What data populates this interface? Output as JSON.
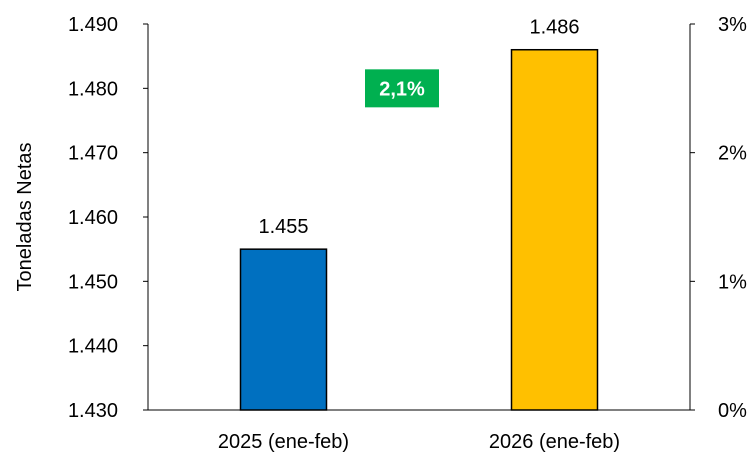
{
  "chart_data": {
    "type": "bar",
    "categories": [
      "2025 (ene-feb)",
      "2026 (ene-feb)"
    ],
    "values": [
      1455,
      1486
    ],
    "value_labels": [
      "1.455",
      "1.486"
    ],
    "bar_colors": [
      "#0070C0",
      "#FFC000"
    ],
    "ylabel": "Toneladas Netas",
    "ylim": [
      1430,
      1490
    ],
    "y_ticks": [
      1430,
      1440,
      1450,
      1460,
      1470,
      1480,
      1490
    ],
    "y_tick_labels": [
      "1.430",
      "1.440",
      "1.450",
      "1.460",
      "1.470",
      "1.480",
      "1.490"
    ],
    "y2_ticks": [
      0,
      1,
      2,
      3
    ],
    "y2_tick_labels": [
      "0%",
      "1%",
      "2%",
      "3%"
    ],
    "y2lim": [
      0,
      3
    ],
    "grid": false,
    "annotation": {
      "text": "2,1%",
      "background": "#00B050",
      "color": "#FFFFFF",
      "y2_value": 2.5
    }
  }
}
